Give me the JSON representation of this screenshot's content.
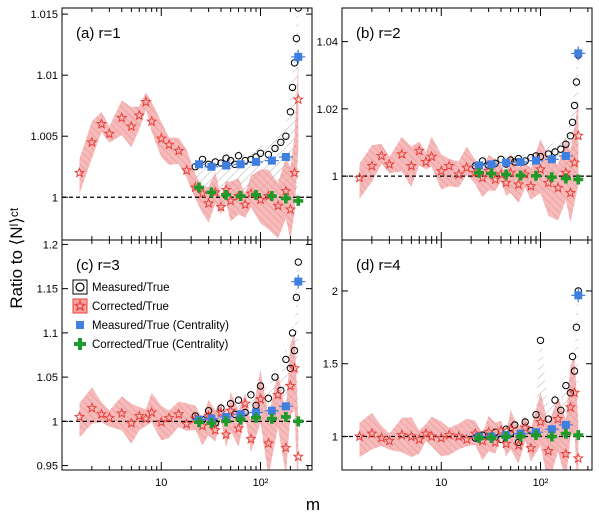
{
  "figure": {
    "ylabel": "Ratio to ⟨Nˡ⟩ᶜᵗ",
    "xlabel": "m"
  },
  "legend": {
    "items": [
      {
        "label": "Measured/True",
        "marker": "open-circle",
        "color": "#000000"
      },
      {
        "label": "Corrected/True",
        "marker": "open-star",
        "color": "#e8403a"
      },
      {
        "label": "Measured/True (Centrality)",
        "marker": "filled-square",
        "color": "#3f7fe0"
      },
      {
        "label": "Corrected/True (Centrality)",
        "marker": "filled-cross",
        "color": "#1f9a2a"
      }
    ]
  },
  "colors": {
    "measured": "#000000",
    "corrected": "#e8403a",
    "corrected_band": "#f4a3a3",
    "centrality_measured": "#3f7fe0",
    "centrality_corrected": "#1f9a2a",
    "reference_line": "#000000"
  },
  "chart_data": [
    {
      "type": "scatter",
      "panel": "(a) r=1",
      "xscale": "log",
      "xlim": [
        1,
        330
      ],
      "ylim": [
        0.9965,
        1.0155
      ],
      "yticks": [
        "1",
        "1.005",
        "1.01",
        "1.015"
      ],
      "ytick_values": [
        1.0,
        1.005,
        1.01,
        1.015
      ],
      "xticks": [
        "10",
        "10²"
      ],
      "reference": 1.0,
      "series": [
        {
          "name": "Measured/True",
          "x": [
            22,
            26,
            30,
            35,
            40,
            45,
            50,
            55,
            60,
            70,
            80,
            90,
            100,
            120,
            140,
            160,
            180,
            200,
            210,
            220,
            230,
            240
          ],
          "y": [
            1.0025,
            1.0031,
            1.0027,
            1.0029,
            1.0028,
            1.0032,
            1.003,
            1.0027,
            1.0034,
            1.003,
            1.0031,
            1.0033,
            1.0036,
            1.0035,
            1.004,
            1.0045,
            1.005,
            1.007,
            1.009,
            1.011,
            1.013,
            1.0155
          ]
        },
        {
          "name": "Corrected/True",
          "x": [
            1.5,
            2,
            2.5,
            3,
            4,
            5,
            6,
            7,
            8,
            10,
            12,
            15,
            18,
            22,
            26,
            30,
            35,
            40,
            45,
            50,
            60,
            70,
            80,
            100,
            120,
            150,
            180,
            200,
            220,
            240
          ],
          "y": [
            1.002,
            1.0045,
            1.006,
            1.0052,
            1.0065,
            1.0058,
            1.0067,
            1.0078,
            1.0062,
            1.0048,
            1.0043,
            1.0038,
            1.0022,
            1.0008,
            1.0003,
            0.9995,
            1.0004,
            0.9992,
            1.0006,
            0.9997,
            1.0001,
            0.9994,
            1.0003,
            0.9998,
            1.0001,
            0.9993,
            1.0005,
            0.999,
            1.002,
            1.008
          ]
        },
        {
          "name": "Measured/True (Centrality)",
          "x": [
            24,
            32,
            45,
            63,
            90,
            130,
            180,
            240
          ],
          "y": [
            1.0027,
            1.0025,
            1.0026,
            1.0027,
            1.0029,
            1.003,
            1.0033,
            1.0115
          ]
        },
        {
          "name": "Corrected/True (Centrality)",
          "x": [
            24,
            32,
            45,
            63,
            90,
            130,
            180,
            240
          ],
          "y": [
            1.0008,
            1.0004,
            1.0002,
            1.0001,
            1.0002,
            1.0001,
            0.9999,
            0.9997
          ]
        }
      ]
    },
    {
      "type": "scatter",
      "panel": "(b) r=2",
      "xscale": "log",
      "xlim": [
        1,
        330
      ],
      "ylim": [
        0.981,
        1.05
      ],
      "yticks": [
        "1",
        "1.02",
        "1.04"
      ],
      "ytick_values": [
        1.0,
        1.02,
        1.04
      ],
      "xticks": [
        "10",
        "10²"
      ],
      "reference": 1.0,
      "series": [
        {
          "name": "Measured/True",
          "x": [
            22,
            26,
            30,
            35,
            40,
            45,
            50,
            55,
            60,
            70,
            80,
            90,
            100,
            120,
            140,
            160,
            180,
            200,
            210,
            220,
            230,
            240
          ],
          "y": [
            1.003,
            1.0045,
            1.0032,
            1.0038,
            1.005,
            1.0036,
            1.0048,
            1.0042,
            1.0052,
            1.0045,
            1.0055,
            1.006,
            1.0058,
            1.0066,
            1.0072,
            1.008,
            1.0095,
            1.012,
            1.016,
            1.021,
            1.028,
            1.036
          ]
        },
        {
          "name": "Corrected/True",
          "x": [
            1.5,
            2,
            2.5,
            3,
            4,
            5,
            6,
            7,
            8,
            10,
            12,
            15,
            18,
            22,
            26,
            30,
            35,
            40,
            45,
            50,
            60,
            70,
            80,
            100,
            120,
            150,
            180,
            200,
            220,
            240
          ],
          "y": [
            0.9995,
            1.003,
            1.006,
            1.0035,
            1.0065,
            1.003,
            1.0075,
            1.0042,
            1.0058,
            1.0015,
            1.003,
            1.0005,
            1.0025,
            1.001,
            0.9995,
            1.0015,
            0.999,
            1.0005,
            0.998,
            1.001,
            0.9975,
            1.0005,
            0.997,
            1.002,
            0.998,
            0.9965,
            1.001,
            0.995,
            1.004,
            1.012
          ]
        },
        {
          "name": "Measured/True (Centrality)",
          "x": [
            24,
            32,
            45,
            63,
            90,
            130,
            180,
            240
          ],
          "y": [
            1.0032,
            1.0035,
            1.004,
            1.0042,
            1.0046,
            1.005,
            1.006,
            1.0365
          ]
        },
        {
          "name": "Corrected/True (Centrality)",
          "x": [
            24,
            32,
            45,
            63,
            90,
            130,
            180,
            240
          ],
          "y": [
            1.001,
            1.0008,
            1.0005,
            1.0002,
            1.0001,
            0.9997,
            0.9993,
            0.999
          ]
        }
      ]
    },
    {
      "type": "scatter",
      "panel": "(c) r=3",
      "xscale": "log",
      "xlim": [
        1,
        330
      ],
      "ylim": [
        0.945,
        1.205
      ],
      "yticks": [
        "0.95",
        "1",
        "1.05",
        "1.1",
        "1.15",
        "1.2"
      ],
      "ytick_values": [
        0.95,
        1.0,
        1.05,
        1.1,
        1.15,
        1.2
      ],
      "xticks": [
        "10",
        "10²"
      ],
      "reference": 1.0,
      "series": [
        {
          "name": "Measured/True",
          "x": [
            22,
            26,
            30,
            35,
            40,
            45,
            50,
            55,
            60,
            70,
            80,
            90,
            100,
            120,
            140,
            160,
            180,
            200,
            210,
            220,
            230,
            240
          ],
          "y": [
            1.006,
            1.002,
            1.012,
            0.998,
            1.015,
            1.004,
            1.02,
            1.008,
            1.024,
            1.01,
            1.03,
            1.018,
            1.04,
            1.026,
            1.05,
            1.035,
            1.07,
            1.06,
            1.1,
            1.08,
            1.14,
            1.18
          ]
        },
        {
          "name": "Corrected/True",
          "x": [
            1.5,
            2,
            2.5,
            3,
            4,
            5,
            6,
            7,
            8,
            10,
            12,
            15,
            18,
            22,
            26,
            30,
            35,
            40,
            45,
            50,
            60,
            70,
            80,
            100,
            120,
            150,
            180,
            200,
            220,
            240
          ],
          "y": [
            1.005,
            1.015,
            1.008,
            1.004,
            1.009,
            0.998,
            1.006,
            1.003,
            1.01,
            0.999,
            1.004,
            1.008,
            0.997,
            1.003,
            0.995,
            1.006,
            0.99,
            1.01,
            0.985,
            1.012,
            0.992,
            1.02,
            0.98,
            1.025,
            0.975,
            1.03,
            0.97,
            1.04,
            1.06,
            0.96
          ]
        },
        {
          "name": "Measured/True (Centrality)",
          "x": [
            24,
            32,
            45,
            63,
            90,
            130,
            180,
            240
          ],
          "y": [
            1.002,
            1.003,
            1.005,
            1.008,
            1.01,
            1.012,
            1.017,
            1.158
          ]
        },
        {
          "name": "Corrected/True (Centrality)",
          "x": [
            24,
            32,
            45,
            63,
            90,
            130,
            180,
            240
          ],
          "y": [
            0.999,
            0.998,
            1.0,
            1.002,
            1.004,
            1.003,
            1.005,
            1.0
          ]
        }
      ]
    },
    {
      "type": "scatter",
      "panel": "(d) r=4",
      "xscale": "log",
      "xlim": [
        1,
        330
      ],
      "ylim": [
        0.77,
        2.35
      ],
      "yticks": [
        "1",
        "1.5",
        "2"
      ],
      "ytick_values": [
        1.0,
        1.5,
        2.0
      ],
      "xticks": [
        "10",
        "10²"
      ],
      "reference": 1.0,
      "series": [
        {
          "name": "Measured/True",
          "x": [
            22,
            26,
            30,
            35,
            40,
            45,
            50,
            55,
            60,
            70,
            80,
            90,
            100,
            120,
            140,
            160,
            180,
            200,
            210,
            220,
            230,
            240
          ],
          "y": [
            0.99,
            1.01,
            1.0,
            1.03,
            0.98,
            1.05,
            1.02,
            1.08,
            0.96,
            1.1,
            1.04,
            1.15,
            1.66,
            1.12,
            1.25,
            1.18,
            1.35,
            1.3,
            1.55,
            1.45,
            1.75,
            2.0
          ]
        },
        {
          "name": "Corrected/True",
          "x": [
            1.5,
            2,
            2.5,
            3,
            4,
            5,
            6,
            7,
            8,
            10,
            12,
            15,
            18,
            22,
            26,
            30,
            35,
            40,
            45,
            50,
            60,
            70,
            80,
            100,
            120,
            150,
            180,
            200,
            220,
            240
          ],
          "y": [
            1.0,
            1.02,
            0.99,
            0.97,
            1.01,
            1.0,
            0.98,
            1.02,
            1.0,
            0.99,
            1.01,
            1.0,
            0.98,
            1.02,
            0.97,
            1.03,
            0.96,
            1.04,
            0.95,
            1.05,
            0.94,
            1.06,
            0.92,
            1.1,
            0.9,
            1.12,
            0.88,
            1.2,
            1.3,
            0.85
          ]
        },
        {
          "name": "Measured/True (Centrality)",
          "x": [
            24,
            32,
            45,
            63,
            90,
            130,
            180,
            240
          ],
          "y": [
            1.0,
            1.0,
            1.01,
            1.02,
            1.03,
            1.05,
            1.08,
            1.97
          ]
        },
        {
          "name": "Corrected/True (Centrality)",
          "x": [
            24,
            32,
            45,
            63,
            90,
            130,
            180,
            240
          ],
          "y": [
            0.99,
            0.99,
            1.0,
            1.0,
            1.01,
            1.0,
            1.02,
            1.01
          ]
        }
      ]
    }
  ]
}
